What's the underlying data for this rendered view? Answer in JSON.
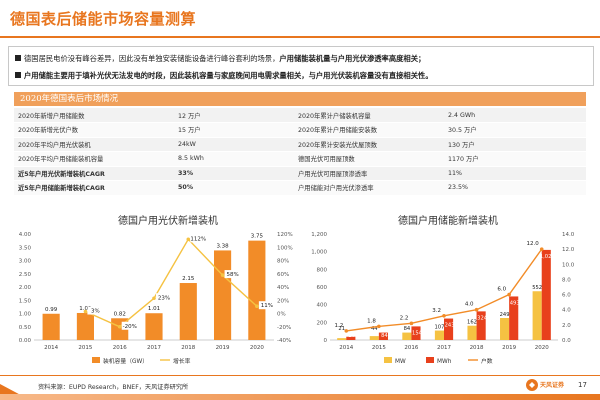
{
  "header": {
    "title": "德国表后储能市场容量测算"
  },
  "bullets": [
    {
      "plain": "德国居民电价没有峰谷差异，因此没有单独安装储能设备进行峰谷套利的场景，",
      "bold": "户用储能装机量与户用光伏渗透率高度相关；"
    },
    {
      "plain": "",
      "bold": "户用储能主要用于填补光伏无法发电的时段，因此装机容量与家庭晚间用电需求量相关，与户用光伏装机容量没有直接相关性。"
    }
  ],
  "table": {
    "title": "2020年德国表后市场情况",
    "rows": [
      {
        "k1": "2020年新增户用储能数",
        "v1": "12 万户",
        "k2": "2020年累计户储装机容量",
        "v2": "2.4 GWh",
        "bold": false
      },
      {
        "k1": "2020年新增光伏户数",
        "v1": "15 万户",
        "k2": "2020年累计户用储能安装数",
        "v2": "30.5 万户",
        "bold": false
      },
      {
        "k1": "2020年平均户用光伏装机",
        "v1": "24kW",
        "k2": "2020年累计安装光伏屋顶数",
        "v2": "130 万户",
        "bold": false
      },
      {
        "k1": "2020年平均户用储能装机容量",
        "v1": "8.5 kWh",
        "k2": "德国光伏可用屋顶数",
        "v2": "1170 万户",
        "bold": false
      },
      {
        "k1": "近5年户用光伏新增装机CAGR",
        "v1": "33%",
        "k2": "户用光伏可用屋顶渗透率",
        "v2": "11%",
        "bold": true
      },
      {
        "k1": "近5年户用储能新增装机CAGR",
        "v1": "50%",
        "k2": "户用储能对户用光伏渗透率",
        "v2": "23.5%",
        "bold": true
      }
    ]
  },
  "chart_data": [
    {
      "type": "bar",
      "title": "德国户用光伏新增装机",
      "categories": [
        "2014",
        "2015",
        "2016",
        "2017",
        "2018",
        "2019",
        "2020"
      ],
      "series": [
        {
          "name": "装机容量（GW）",
          "axis": "left",
          "values": [
            0.99,
            1.02,
            0.82,
            1.01,
            2.15,
            3.38,
            3.75
          ],
          "labels": [
            "0.99",
            "1.02",
            "0.82",
            "1.01",
            "2.15",
            "3.38",
            "3.75"
          ]
        },
        {
          "name": "增长率",
          "axis": "right",
          "kind": "line",
          "values": [
            null,
            3,
            -20,
            23,
            112,
            58,
            11
          ],
          "labels": [
            "",
            "3%",
            "-20%",
            "23%",
            "112%",
            "58%",
            "11%"
          ]
        }
      ],
      "ylim": [
        0,
        4.0
      ],
      "yticks": [
        "0.00",
        "0.50",
        "1.00",
        "1.50",
        "2.00",
        "2.50",
        "3.00",
        "3.50",
        "4.00"
      ],
      "y2lim": [
        -40,
        120
      ],
      "y2ticks": [
        "-40%",
        "-20%",
        "0%",
        "20%",
        "40%",
        "60%",
        "80%",
        "100%",
        "120%"
      ],
      "colors": {
        "bar": "#f28c28",
        "line": "#f5c242"
      }
    },
    {
      "type": "bar",
      "title": "德国户用储能新增装机",
      "categories": [
        "2014",
        "2015",
        "2016",
        "2017",
        "2018",
        "2019",
        "2020"
      ],
      "series": [
        {
          "name": "MW",
          "axis": "left",
          "values": [
            21,
            44,
            84,
            107,
            162,
            249,
            552
          ],
          "labels": [
            "21",
            "44",
            "84",
            "107",
            "162",
            "249",
            "552"
          ]
        },
        {
          "name": "MWh",
          "axis": "left",
          "values": [
            37,
            84,
            154,
            243,
            324,
            493,
            1020
          ],
          "labels": [
            "37",
            "84",
            "154",
            "243",
            "324",
            "493",
            "1,020"
          ]
        },
        {
          "name": "户数",
          "axis": "right",
          "kind": "line",
          "values": [
            1.2,
            1.8,
            2.2,
            3.2,
            4.0,
            6.0,
            12.0
          ],
          "labels": [
            "1.2",
            "1.8",
            "2.2",
            "3.2",
            "4.0",
            "6.0",
            "12.0"
          ]
        }
      ],
      "ylim": [
        0,
        1200
      ],
      "yticks": [
        "0",
        "200",
        "400",
        "600",
        "800",
        "1,000",
        "1,200"
      ],
      "y2lim": [
        0,
        14
      ],
      "y2ticks": [
        "0.0",
        "2.0",
        "4.0",
        "6.0",
        "8.0",
        "10.0",
        "12.0",
        "14.0"
      ],
      "colors": {
        "mw": "#f5c242",
        "mwh": "#e8401c",
        "line": "#f28c28"
      }
    }
  ],
  "footer": {
    "source": "资料来源：EUPD Research，BNEF，天风证券研究所",
    "brand": "天风证券",
    "page": "17"
  }
}
